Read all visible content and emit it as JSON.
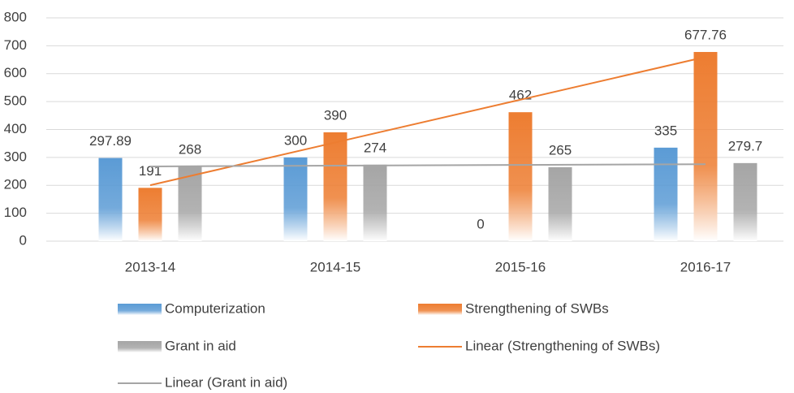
{
  "chart_data": {
    "type": "bar",
    "categories": [
      "2013-14",
      "2014-15",
      "2015-16",
      "2016-17"
    ],
    "series": [
      {
        "name": "Computerization",
        "color": "#5b9bd5",
        "values": [
          297.89,
          300,
          0,
          335
        ]
      },
      {
        "name": "Strengthening of SWBs",
        "color": "#ed7d31",
        "values": [
          191,
          390,
          462,
          677.76
        ]
      },
      {
        "name": "Grant in aid",
        "color": "#a5a5a5",
        "values": [
          268,
          274,
          265,
          279.7
        ]
      },
      {
        "name": "Linear (Strengthening of SWBs)",
        "type": "line",
        "color": "#ed7d31",
        "values": [
          200.35,
          353.58,
          506.8,
          660.03
        ]
      },
      {
        "name": "Linear (Grant in aid)",
        "type": "line",
        "color": "#a5a5a5",
        "values": [
          267.76,
          270.37,
          272.98,
          275.59
        ]
      }
    ],
    "ylim": [
      0,
      800
    ],
    "yticks": [
      0,
      100,
      200,
      300,
      400,
      500,
      600,
      700,
      800
    ],
    "grid": true,
    "legend": "bottom"
  }
}
